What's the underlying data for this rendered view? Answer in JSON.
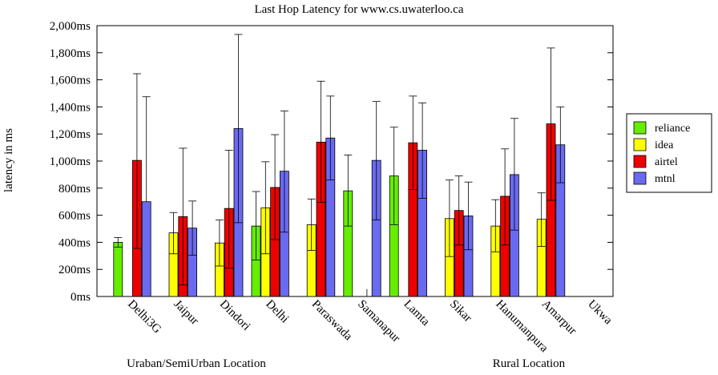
{
  "chart_data": {
    "type": "bar",
    "title": "Last Hop Latency for www.cs.uwaterloo.ca",
    "xlabel": "",
    "ylabel": "latency in ms",
    "ylim": [
      0,
      2000
    ],
    "y_ticks": [
      0,
      200,
      400,
      600,
      800,
      1000,
      1200,
      1400,
      1600,
      1800,
      2000
    ],
    "y_tick_labels": [
      "0ms",
      "200ms",
      "400ms",
      "600ms",
      "800ms",
      "1,000ms",
      "1,200ms",
      "1,400ms",
      "1,600ms",
      "1,800ms",
      "2,000ms"
    ],
    "categories": [
      "Delhi3G",
      "Jaipur",
      "Dindori",
      "Delhi",
      "Paraswada",
      "Samanapur",
      "Lamta",
      "Sikar",
      "Hanumanpura",
      "Amarpur",
      "Ukwa"
    ],
    "groups": [
      {
        "label": "Uraban/SemiUrban Location"
      },
      {
        "label": "Rural Location"
      }
    ],
    "legend_position": "right",
    "grid": false,
    "series": [
      {
        "name": "reliance",
        "color": "#66ee00",
        "values": [
          400,
          null,
          null,
          520,
          null,
          780,
          890,
          null,
          null,
          null,
          null
        ],
        "err_low": [
          365,
          null,
          null,
          270,
          null,
          520,
          530,
          null,
          null,
          null,
          null
        ],
        "err_high": [
          435,
          null,
          null,
          775,
          null,
          1045,
          1250,
          null,
          null,
          null,
          null
        ]
      },
      {
        "name": "idea",
        "color": "#ffff00",
        "values": [
          null,
          470,
          395,
          655,
          530,
          null,
          null,
          575,
          520,
          570,
          null
        ],
        "err_low": [
          null,
          315,
          225,
          315,
          340,
          null,
          null,
          295,
          330,
          370,
          null
        ],
        "err_high": [
          null,
          620,
          565,
          995,
          720,
          null,
          null,
          860,
          715,
          765,
          null
        ]
      },
      {
        "name": "airtel",
        "color": "#ee0000",
        "values": [
          1005,
          590,
          650,
          805,
          1140,
          null,
          1135,
          635,
          740,
          1275,
          null
        ],
        "err_low": [
          355,
          85,
          210,
          420,
          695,
          null,
          790,
          380,
          380,
          710,
          null
        ],
        "err_high": [
          1645,
          1095,
          1080,
          1195,
          1590,
          null,
          1480,
          890,
          1090,
          1835,
          null
        ],
        "marker_only": [
          null,
          null,
          null,
          null,
          null,
          55,
          null,
          null,
          null,
          null,
          null
        ]
      },
      {
        "name": "mtnl",
        "color": "#6a6af0",
        "values": [
          700,
          505,
          1240,
          925,
          1170,
          1005,
          1080,
          595,
          900,
          1120,
          null
        ],
        "err_low": [
          null,
          305,
          545,
          475,
          860,
          565,
          725,
          345,
          490,
          840,
          null
        ],
        "err_high": [
          1475,
          705,
          1935,
          1370,
          1480,
          1440,
          1430,
          845,
          1315,
          1400,
          null
        ]
      }
    ]
  }
}
